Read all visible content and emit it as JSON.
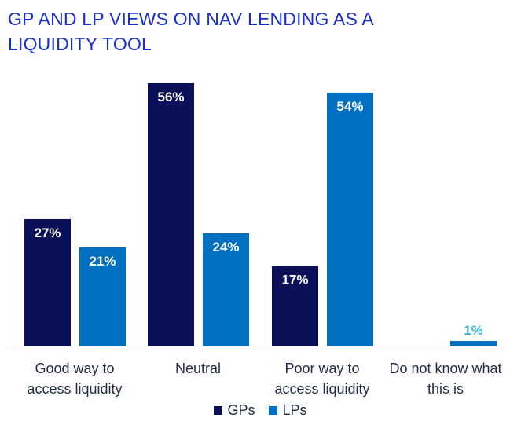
{
  "title_lines": [
    "GP AND LP VIEWS ON NAV LENDING AS A",
    "LIQUIDITY TOOL"
  ],
  "chart_data": {
    "type": "bar",
    "categories": [
      [
        "Good way to",
        "access liquidity"
      ],
      [
        "Neutral"
      ],
      [
        "Poor way to",
        "access liquidity"
      ],
      [
        "Do not know what",
        "this is"
      ]
    ],
    "series": [
      {
        "name": "GPs",
        "color": "#0a1159",
        "values": [
          27,
          null,
          17,
          null
        ],
        "labels": [
          "27%",
          "56%",
          "17%",
          ""
        ]
      },
      {
        "name": "LPs",
        "color": "#0070c0",
        "values": [
          21,
          24,
          54,
          1
        ],
        "labels": [
          "21%",
          "24%",
          "54%",
          "1%"
        ]
      }
    ],
    "gp_neutral": 56,
    "ylim": [
      0,
      56
    ],
    "grid": false,
    "legend_position": "bottom",
    "small_label_color": "#33b5e5",
    "label_color": "#ffffff"
  }
}
